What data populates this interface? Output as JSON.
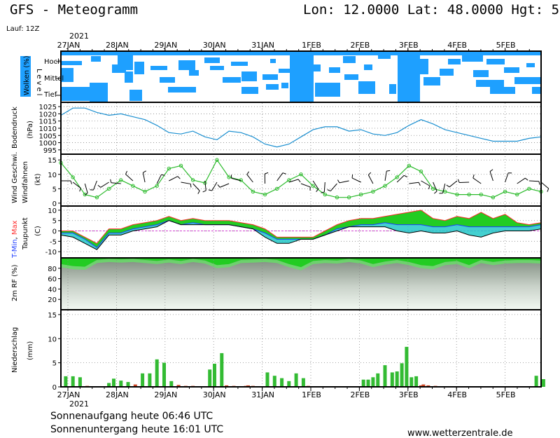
{
  "header": {
    "title": "GFS - Meteogramm",
    "coords": "Lon: 12.0000 Lat: 48.0000 Hgt: 5",
    "run": "Lauf: 12Z"
  },
  "dates": {
    "year": "2021",
    "labels": [
      "27JAN",
      "28JAN",
      "29JAN",
      "30JAN",
      "31JAN",
      "1FEB",
      "2FEB",
      "3FEB",
      "4FEB",
      "5FEB"
    ]
  },
  "footer": {
    "sunrise": "Sonnenaufgang heute 06:46 UTC",
    "sunset": "Sonnenuntergang heute 16:01 UTC",
    "credit": "www.wetterzentrale.de"
  },
  "colors": {
    "cloud": "#1ea0ff",
    "pressure": "#1b8fd0",
    "wind": "#2dbb2d",
    "tmin": "#1e3cff",
    "tmax": "#ff2a2a",
    "dew": "#000000",
    "rh": "#22cc22",
    "precip_rain": "#33bb33",
    "precip_other": "#cc4422"
  },
  "chart_data": [
    {
      "type": "heatmap",
      "panel": "clouds",
      "ylabel": "Wolken (%)",
      "axis_label": "Level",
      "levels": [
        "Hoch",
        "Mittel",
        "Tief"
      ]
    },
    {
      "type": "line",
      "panel": "pressure",
      "ylabel": "Bodendruck (hPa)",
      "yticks": [
        995,
        1000,
        1005,
        1010,
        1015,
        1020,
        1025
      ],
      "ylim": [
        992,
        1028
      ],
      "x_days": [
        0,
        0.25,
        0.5,
        0.75,
        1,
        1.25,
        1.5,
        1.75,
        2,
        2.25,
        2.5,
        2.75,
        3,
        3.25,
        3.5,
        3.75,
        4,
        4.25,
        4.5,
        4.75,
        5,
        5.25,
        5.5,
        5.75,
        6,
        6.25,
        6.5,
        6.75,
        7,
        7.25,
        7.5,
        7.75,
        8,
        8.25,
        8.5,
        8.75,
        9,
        9.25,
        9.5,
        9.75,
        10
      ],
      "values": [
        1019,
        1024,
        1024,
        1021,
        1019,
        1020,
        1018,
        1016,
        1012,
        1007,
        1006,
        1008,
        1004,
        1002,
        1008,
        1007,
        1004,
        999,
        997,
        999,
        1004,
        1009,
        1011,
        1011,
        1008,
        1009,
        1006,
        1005,
        1007,
        1012,
        1016,
        1013,
        1009,
        1007,
        1005,
        1003,
        1001,
        1001,
        1001,
        1003,
        1004
      ]
    },
    {
      "type": "line",
      "panel": "wind",
      "ylabel": "Wind Geschw. Windfahnen (kt)",
      "yticks": [
        0,
        5,
        10,
        15
      ],
      "ylim": [
        -1,
        17
      ],
      "x_days": [
        0,
        0.25,
        0.5,
        0.75,
        1,
        1.25,
        1.5,
        1.75,
        2,
        2.25,
        2.5,
        2.75,
        3,
        3.25,
        3.5,
        3.75,
        4,
        4.25,
        4.5,
        4.75,
        5,
        5.25,
        5.5,
        5.75,
        6,
        6.25,
        6.5,
        6.75,
        7,
        7.25,
        7.5,
        7.75,
        8,
        8.25,
        8.5,
        8.75,
        9,
        9.25,
        9.5,
        9.75,
        10
      ],
      "values": [
        14,
        9,
        3,
        2,
        5,
        8,
        6,
        4,
        6,
        12,
        13,
        8,
        7,
        15,
        9,
        8,
        4,
        3,
        5,
        8,
        10,
        6,
        3,
        2,
        2,
        3,
        4,
        6,
        9,
        13,
        11,
        5,
        4,
        3,
        3,
        3,
        2,
        4,
        3,
        5,
        4
      ]
    },
    {
      "type": "line",
      "panel": "temperature",
      "ylabel": "T-Min, Max Taupunkt (C)",
      "yticks": [
        -10,
        -5,
        0,
        5,
        10
      ],
      "ylim": [
        -13,
        12
      ],
      "x_days": [
        0,
        0.25,
        0.5,
        0.75,
        1,
        1.25,
        1.5,
        1.75,
        2,
        2.25,
        2.5,
        2.75,
        3,
        3.25,
        3.5,
        3.75,
        4,
        4.25,
        4.5,
        4.75,
        5,
        5.25,
        5.5,
        5.75,
        6,
        6.25,
        6.5,
        6.75,
        7,
        7.25,
        7.5,
        7.75,
        8,
        8.25,
        8.5,
        8.75,
        9,
        9.25,
        9.5,
        9.75,
        10
      ],
      "series": [
        {
          "name": "T-Max",
          "values": [
            0,
            0,
            -3,
            -6,
            1,
            1,
            3,
            4,
            5,
            7,
            5,
            6,
            5,
            5,
            5,
            4,
            3,
            1,
            -3,
            -3,
            -3,
            -3,
            0,
            3,
            5,
            6,
            6,
            7,
            8,
            9,
            10,
            6,
            5,
            7,
            6,
            9,
            6,
            8,
            4,
            3,
            4
          ]
        },
        {
          "name": "T-Min",
          "values": [
            -1,
            -1,
            -4,
            -8,
            -1,
            -1,
            1,
            2,
            3,
            5,
            3,
            4,
            3,
            3,
            3,
            2,
            1,
            -1,
            -4,
            -4,
            -4,
            -4,
            -2,
            1,
            2,
            3,
            3,
            4,
            3,
            3,
            3,
            2,
            2,
            3,
            2,
            2,
            2,
            2,
            2,
            2,
            3
          ]
        },
        {
          "name": "Taupunkt",
          "values": [
            -2,
            -3,
            -6,
            -9,
            -2,
            -2,
            0,
            1,
            2,
            5,
            3,
            3,
            3,
            3,
            3,
            2,
            1,
            -3,
            -6,
            -6,
            -4,
            -4,
            -2,
            0,
            2,
            2,
            2,
            2,
            0,
            -1,
            0,
            -1,
            -1,
            0,
            -2,
            -3,
            -1,
            0,
            0,
            0,
            1
          ]
        }
      ]
    },
    {
      "type": "area",
      "panel": "humidity",
      "ylabel": "2m RF (%)",
      "yticks": [
        20,
        40,
        60,
        80
      ],
      "ylim": [
        0,
        100
      ],
      "x_days": [
        0,
        0.25,
        0.5,
        0.75,
        1,
        1.25,
        1.5,
        1.75,
        2,
        2.25,
        2.5,
        2.75,
        3,
        3.25,
        3.5,
        3.75,
        4,
        4.25,
        4.5,
        4.75,
        5,
        5.25,
        5.5,
        5.75,
        6,
        6.25,
        6.5,
        6.75,
        7,
        7.25,
        7.5,
        7.75,
        8,
        8.25,
        8.5,
        8.75,
        9,
        9.25,
        9.5,
        9.75,
        10
      ],
      "values": [
        88,
        84,
        83,
        96,
        98,
        97,
        98,
        96,
        94,
        97,
        94,
        98,
        95,
        86,
        88,
        96,
        97,
        98,
        96,
        88,
        82,
        94,
        96,
        95,
        98,
        95,
        88,
        93,
        96,
        92,
        86,
        84,
        92,
        94,
        86,
        96,
        92,
        95,
        96,
        96,
        95
      ]
    },
    {
      "type": "bar",
      "panel": "precipitation",
      "ylabel": "Niederschlag (mm)",
      "yticks": [
        0,
        5,
        10,
        15
      ],
      "ylim": [
        0,
        16
      ],
      "x_days": [
        0.1,
        0.25,
        0.4,
        0.55,
        1.0,
        1.1,
        1.25,
        1.4,
        1.55,
        1.7,
        1.85,
        2.0,
        2.15,
        2.3,
        2.45,
        2.6,
        2.75,
        3.1,
        3.2,
        3.35,
        3.45,
        3.6,
        3.75,
        3.85,
        3.9,
        4.0,
        4.3,
        4.45,
        4.6,
        4.75,
        4.9,
        5.05,
        5.15,
        5.3,
        6.3,
        6.4,
        6.5,
        6.6,
        6.75,
        6.9,
        7.0,
        7.1,
        7.2,
        7.3,
        7.4,
        7.5,
        7.55,
        7.65,
        7.8,
        7.9,
        8.0,
        9.9,
        10.05
      ],
      "values": [
        2.2,
        2.2,
        2.0,
        0.2,
        0.8,
        1.7,
        1.3,
        1.0,
        0.5,
        2.8,
        2.8,
        5.7,
        5.0,
        1.2,
        0.4,
        0.2,
        0.2,
        3.6,
        4.8,
        7.0,
        0.3,
        0.2,
        0.1,
        0.2,
        0.3,
        0.2,
        3.0,
        2.3,
        1.8,
        1.2,
        2.8,
        1.8,
        0.2,
        0.1,
        1.5,
        1.5,
        2.0,
        2.8,
        4.5,
        3.0,
        3.2,
        4.9,
        8.3,
        2.0,
        2.2,
        0.3,
        0.5,
        0.3,
        0.2,
        0.1,
        0.1,
        2.3,
        1.6
      ]
    }
  ]
}
